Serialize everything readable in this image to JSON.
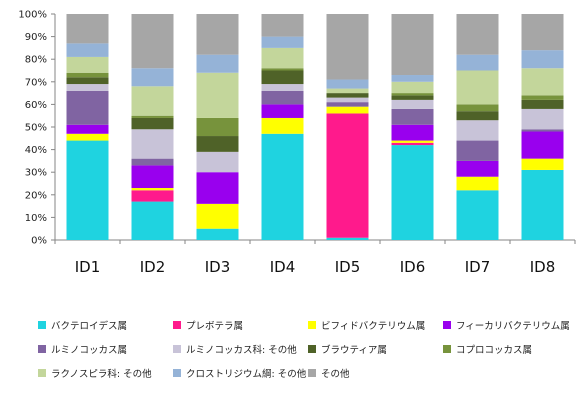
{
  "chart_data": {
    "type": "bar",
    "stacked": true,
    "percent": true,
    "categories": [
      "ID1",
      "ID2",
      "ID3",
      "ID4",
      "ID5",
      "ID6",
      "ID7",
      "ID8"
    ],
    "ylim": [
      0,
      100
    ],
    "yticks": [
      "0%",
      "10%",
      "20%",
      "30%",
      "40%",
      "50%",
      "60%",
      "70%",
      "80%",
      "90%",
      "100%"
    ],
    "grid": false,
    "legend_position": "bottom",
    "series": [
      {
        "name": "バクテロイデス属",
        "color": "#1fd3e0",
        "values": [
          44,
          17,
          5,
          47,
          1,
          42,
          22,
          31
        ]
      },
      {
        "name": "プレボテラ属",
        "color": "#ff1a8c",
        "values": [
          0,
          5,
          0,
          0,
          55,
          1,
          0,
          0
        ]
      },
      {
        "name": "ビフィドバクテリウム属",
        "color": "#ffff00",
        "values": [
          3,
          1,
          11,
          7,
          3,
          1,
          6,
          5
        ]
      },
      {
        "name": "フィーカリバクテリウム属",
        "color": "#9900ee",
        "values": [
          4,
          10,
          14,
          6,
          0,
          7,
          7,
          12
        ]
      },
      {
        "name": "ルミノコッカス属",
        "color": "#8064a2",
        "values": [
          15,
          3,
          0,
          6,
          2,
          7,
          9,
          1
        ]
      },
      {
        "name": "ルミノコッカス科: その他",
        "color": "#c8c3d8",
        "values": [
          3,
          13,
          9,
          3,
          2,
          4,
          9,
          9
        ]
      },
      {
        "name": "ブラウティア属",
        "color": "#4f6228",
        "values": [
          3,
          5,
          7,
          6,
          2,
          2,
          4,
          4
        ]
      },
      {
        "name": "コプロコッカス属",
        "color": "#77933c",
        "values": [
          2,
          1,
          8,
          1,
          0,
          1,
          3,
          2
        ]
      },
      {
        "name": "ラクノスピラ科: その他",
        "color": "#c3d69b",
        "values": [
          7,
          13,
          20,
          9,
          2,
          5,
          15,
          12
        ]
      },
      {
        "name": "クロストリジウム綱: その他",
        "color": "#95b3d7",
        "values": [
          6,
          8,
          8,
          5,
          4,
          3,
          7,
          8
        ]
      },
      {
        "name": "その他",
        "color": "#a6a6a6",
        "values": [
          13,
          24,
          18,
          10,
          29,
          27,
          18,
          16
        ]
      }
    ]
  }
}
